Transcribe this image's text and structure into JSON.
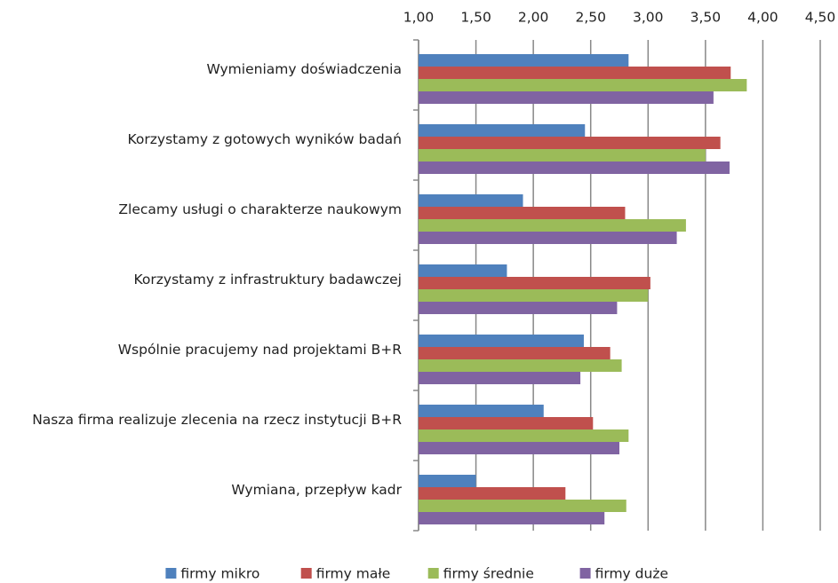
{
  "chart_data": {
    "type": "bar",
    "orientation": "horizontal",
    "categories": [
      "Wymieniamy doświadczenia",
      "Korzystamy z gotowych wyników badań",
      "Zlecamy usługi o charakterze naukowym",
      "Korzystamy z infrastruktury badawczej",
      "Wspólnie pracujemy nad projektami B+R",
      "Nasza firma realizuje zlecenia na rzecz instytucji B+R",
      "Wymiana, przepływ kadr"
    ],
    "series": [
      {
        "name": "firmy mikro",
        "color": "#4f81bd",
        "values": [
          2.83,
          2.45,
          1.91,
          1.77,
          2.44,
          2.09,
          1.5
        ]
      },
      {
        "name": "firmy małe",
        "color": "#c0504d",
        "values": [
          3.72,
          3.63,
          2.8,
          3.02,
          2.67,
          2.52,
          2.28
        ]
      },
      {
        "name": "firmy średnie",
        "color": "#9bbb59",
        "values": [
          3.86,
          3.5,
          3.33,
          3.0,
          2.77,
          2.83,
          2.81
        ]
      },
      {
        "name": "firmy duże",
        "color": "#8064a2",
        "values": [
          3.57,
          3.71,
          3.25,
          2.73,
          2.41,
          2.75,
          2.62
        ]
      }
    ],
    "xlim": [
      1.0,
      4.5
    ],
    "xticks": [
      {
        "value": 1.0,
        "label": "1,00"
      },
      {
        "value": 1.5,
        "label": "1,50"
      },
      {
        "value": 2.0,
        "label": "2,00"
      },
      {
        "value": 2.5,
        "label": "2,50"
      },
      {
        "value": 3.0,
        "label": "3,00"
      },
      {
        "value": 3.5,
        "label": "3,50"
      },
      {
        "value": 4.0,
        "label": "4,00"
      },
      {
        "value": 4.5,
        "label": "4,50"
      }
    ],
    "grid": true,
    "legend": "bottom"
  }
}
